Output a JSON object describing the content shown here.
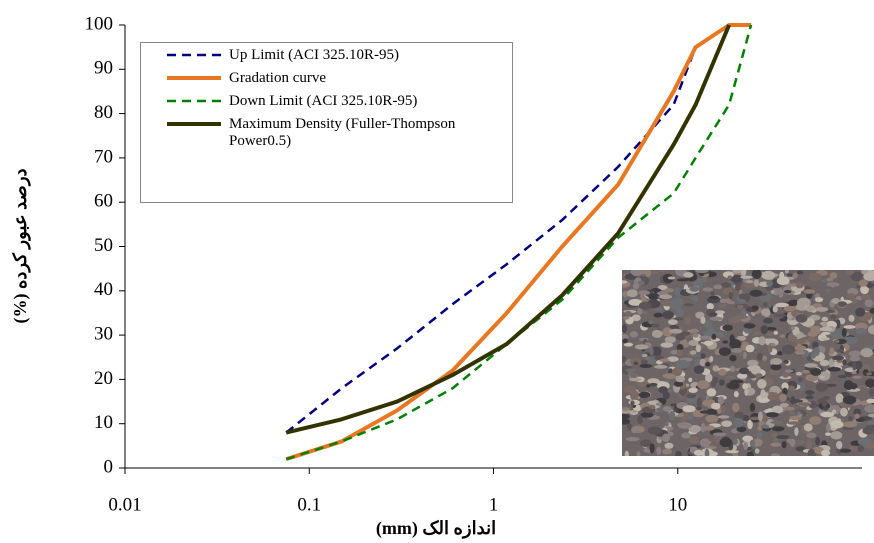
{
  "chart_data": {
    "type": "line",
    "x_label": "اندازه الک (mm)",
    "y_label": "درصد عبور کرده (%)",
    "x": [
      0.075,
      0.15,
      0.3,
      0.6,
      1.18,
      2.36,
      4.75,
      9.5,
      12.5,
      19,
      25
    ],
    "xlim": [
      0.01,
      100
    ],
    "xticks": [
      0.01,
      0.1,
      1,
      10
    ],
    "xscale": "log",
    "ylim": [
      0,
      100
    ],
    "yticks": [
      0,
      10,
      20,
      30,
      40,
      50,
      60,
      70,
      80,
      90,
      100
    ],
    "grid": false,
    "legend": "upper left",
    "series": [
      {
        "name": "Up Limit (ACI 325.10R-95)",
        "color": "#000080",
        "dashed": true,
        "values": [
          8,
          18,
          27,
          37,
          46,
          56,
          68,
          82,
          95,
          100,
          100
        ]
      },
      {
        "name": "Gradation curve",
        "color": "#e87722",
        "dashed": false,
        "values": [
          2,
          6,
          13,
          22,
          35,
          50,
          64,
          85,
          95,
          100,
          100
        ]
      },
      {
        "name": "Down Limit (ACI 325.10R-95)",
        "color": "#008000",
        "dashed": true,
        "values": [
          2,
          6,
          11,
          18,
          28,
          38,
          52,
          62,
          70,
          82,
          100
        ]
      },
      {
        "name": "Maximum Density (Fuller-Thompson Power0.5)",
        "color": "#333300",
        "dashed": false,
        "values": [
          8,
          11,
          15,
          21,
          28,
          39,
          53,
          73,
          82,
          100,
          null
        ]
      }
    ]
  }
}
